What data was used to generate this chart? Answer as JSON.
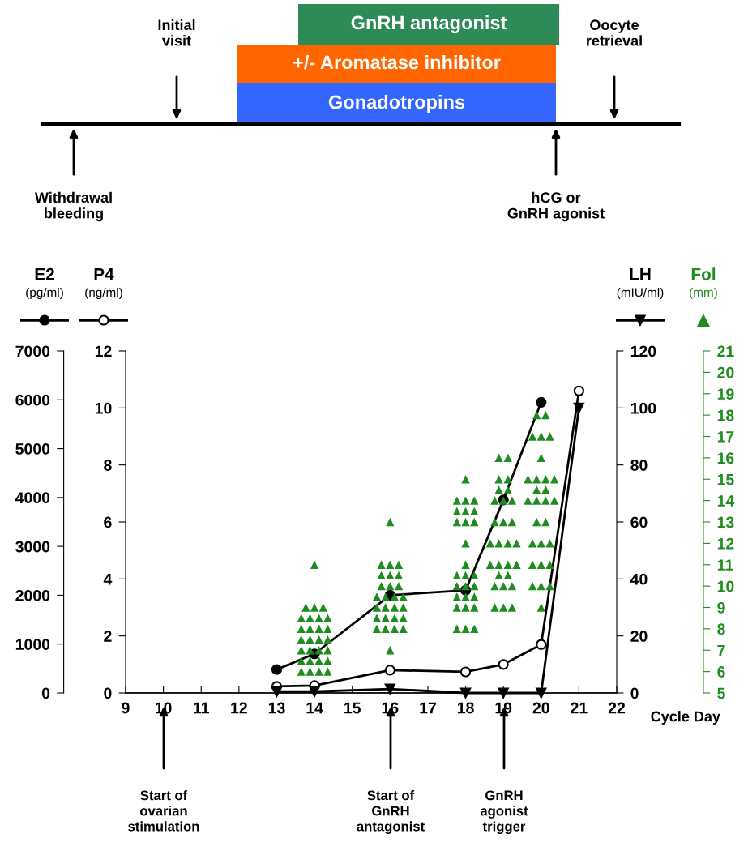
{
  "chart_data": [
    {
      "type": "other",
      "annotations": [
        "GnRH antagonist",
        "+/- Aromatase inhibitor",
        "Gonadotropins",
        "Initial\nvisit",
        "Oocyte\nretrieval",
        "Withdrawal\nbleeding",
        "hCG or\nGnRH agonist"
      ],
      "colors": [
        "#2e8b57",
        "#ff6600",
        "#3366ff"
      ]
    },
    {
      "type": "line",
      "xlabel": "Cycle Day",
      "ylabel": "E2\n(pg/ml)",
      "y2label": "P4\n(ng/ml)",
      "y3label": "LH\n(mIU/ml)",
      "xlim": [
        9,
        22
      ],
      "xticks": [
        9,
        10,
        11,
        12,
        13,
        14,
        15,
        16,
        17,
        18,
        19,
        20,
        21,
        22
      ],
      "ylim": [
        0,
        7000
      ],
      "yticks": [
        0,
        1000,
        2000,
        3000,
        4000,
        5000,
        6000,
        7000
      ],
      "y2lim": [
        0,
        12
      ],
      "y2ticks": [
        0,
        2,
        4,
        6,
        8,
        10,
        12
      ],
      "y3lim": [
        0,
        120
      ],
      "y3ticks": [
        0,
        20,
        40,
        60,
        80,
        100,
        120
      ],
      "grid": false,
      "series": [
        {
          "type": "line",
          "color": "#000000",
          "marker": "circle",
          "x": [
            13,
            14,
            16,
            18,
            19,
            20
          ],
          "values": [
            480,
            800,
            2000,
            2100,
            3950,
            5950
          ]
        },
        {
          "type": "line",
          "axis": "y2",
          "color": "#ffffff",
          "marker": "circle",
          "x": [
            13,
            14,
            16,
            18,
            19,
            20,
            21
          ],
          "values": [
            0.23,
            0.26,
            0.8,
            0.74,
            1.0,
            1.7,
            10.6
          ]
        },
        {
          "type": "line",
          "axis": "y3",
          "color": "#000000",
          "marker": "triangle",
          "x": [
            13,
            14,
            16,
            18,
            19,
            20,
            21
          ],
          "values": [
            0.5,
            0.5,
            1.4,
            0,
            0,
            0,
            100
          ]
        }
      ],
      "annotations": [
        "Start of\novarian\nstimulation",
        "Start of\nGnRH\nantagonist",
        "GnRH\nagonist\ntrigger"
      ]
    },
    {
      "type": "scatter",
      "ylabel": "Fol\n(mm)",
      "tick_labels": "y",
      "xlim": [
        9,
        22
      ],
      "ylim": [
        5,
        21
      ],
      "yticks": [
        5,
        6,
        7,
        8,
        9,
        10,
        11,
        12,
        13,
        14,
        15,
        16,
        17,
        18,
        19,
        20,
        21
      ],
      "series": [
        {
          "color": "#1e8c1e",
          "marker": "triangle",
          "x": [
            14,
            13.77,
            14,
            14.23,
            13.65,
            13.88,
            14.12,
            14.35,
            13.65,
            13.88,
            14.12,
            14.35,
            13.65,
            13.88,
            14.12,
            14.35,
            13.65,
            13.88,
            14.12,
            14.35,
            13.65,
            13.88,
            14.12,
            14.35,
            13.65,
            13.88,
            14.12,
            14.35,
            16,
            15.77,
            16,
            16.23,
            15.77,
            16,
            16.23,
            15.77,
            16,
            16.23,
            15.65,
            15.88,
            16.12,
            16.35,
            15.65,
            15.88,
            16.12,
            16.35,
            15.65,
            15.88,
            16.12,
            16.35,
            15.65,
            15.88,
            16.12,
            16.35,
            16,
            18,
            17.77,
            18,
            18.23,
            17.77,
            18,
            18.23,
            17.77,
            18,
            18.23,
            18,
            18,
            17.77,
            18,
            18.23,
            17.77,
            18,
            18.23,
            17.77,
            18,
            18.23,
            17.77,
            18,
            18.23,
            17.77,
            18,
            18.23,
            18.88,
            19.12,
            18.88,
            19.12,
            18.88,
            19.12,
            18.77,
            19,
            19.23,
            18.77,
            19,
            19.23,
            18.65,
            18.88,
            19.12,
            19.35,
            18.65,
            18.88,
            19.12,
            19.35,
            18.88,
            19.12,
            18.77,
            19,
            19.23,
            18.77,
            19,
            19.23,
            19.88,
            20.12,
            19.77,
            20,
            20.23,
            20,
            19.65,
            19.88,
            20.12,
            20.35,
            19.88,
            20.12,
            19.65,
            19.88,
            20.12,
            20.35,
            19.88,
            20.12,
            19.77,
            20,
            20.23,
            19.77,
            20,
            20.23,
            19.77,
            20,
            20.23,
            20
          ],
          "values": [
            11,
            9,
            9,
            9,
            8.5,
            8.5,
            8.5,
            8.5,
            8,
            8,
            8,
            8,
            7.5,
            7.5,
            7.5,
            7.5,
            7,
            7,
            7,
            7,
            6.5,
            6.5,
            6.5,
            6.5,
            6,
            6,
            6,
            6,
            13,
            11,
            11,
            11,
            10.5,
            10.5,
            10.5,
            10,
            10,
            10,
            9.5,
            9.5,
            9.5,
            9.5,
            9,
            9,
            9,
            9,
            8.5,
            8.5,
            8.5,
            8.5,
            8,
            8,
            8,
            8,
            7,
            15,
            14,
            14,
            14,
            13.5,
            13.5,
            13.5,
            13,
            13,
            13,
            12,
            11,
            10.5,
            10.5,
            10.5,
            10,
            10,
            10,
            9.5,
            9.5,
            9.5,
            9,
            9,
            9,
            8,
            8,
            8,
            16,
            16,
            15,
            15,
            14.5,
            14.5,
            14,
            14,
            14,
            13,
            13,
            13,
            12,
            12,
            12,
            12,
            11,
            11,
            11,
            11,
            10.5,
            10.5,
            10,
            10,
            10,
            9,
            9,
            9,
            18,
            18,
            17,
            17,
            17,
            16,
            15,
            15,
            15,
            15,
            14.5,
            14.5,
            14,
            14,
            14,
            14,
            13,
            13,
            12,
            12,
            12,
            11,
            11,
            11,
            10,
            10,
            10,
            9
          ]
        }
      ]
    }
  ]
}
